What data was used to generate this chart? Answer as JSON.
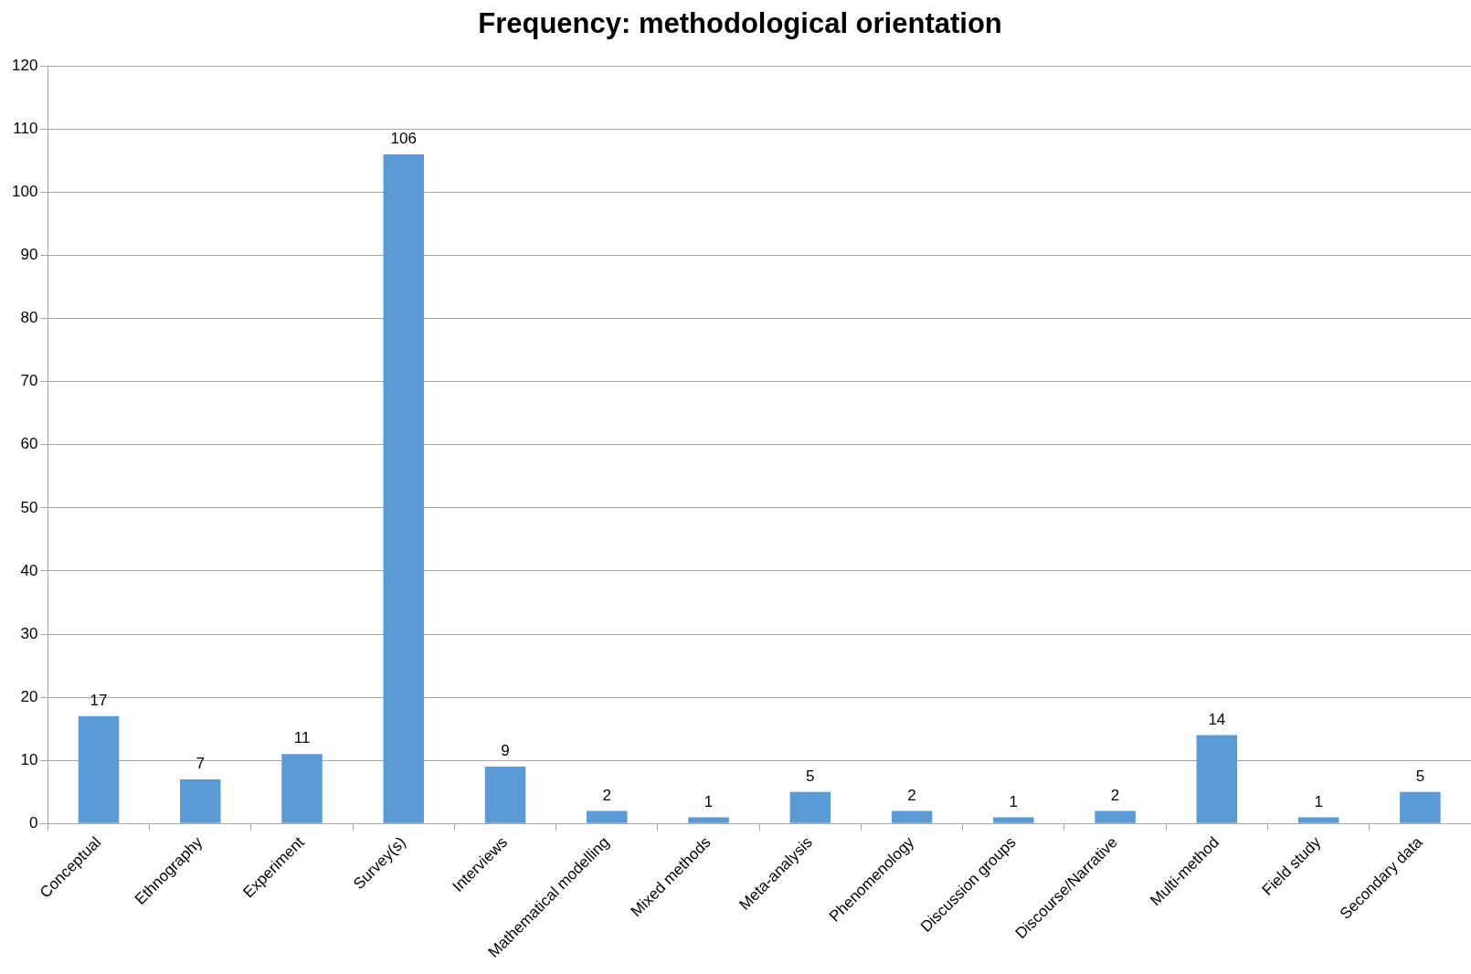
{
  "chart_data": {
    "type": "bar",
    "title": "Frequency: methodological orientation",
    "categories": [
      "Conceptual",
      "Ethnography",
      "Experiment",
      "Survey(s)",
      "Interviews",
      "Mathematical modelling",
      "Mixed methods",
      "Meta-analysis",
      "Phenomenology",
      "Discussion groups",
      "Discourse/Narrative",
      "Multi-method",
      "Field study",
      "Secondary data"
    ],
    "values": [
      17,
      7,
      11,
      106,
      9,
      2,
      1,
      5,
      2,
      1,
      2,
      14,
      1,
      5
    ],
    "color": "#5b9bd5",
    "ylim": [
      0,
      120
    ],
    "yticks": [
      0,
      10,
      20,
      30,
      40,
      50,
      60,
      70,
      80,
      90,
      100,
      110,
      120
    ],
    "grid": "y",
    "data_labels": true
  }
}
